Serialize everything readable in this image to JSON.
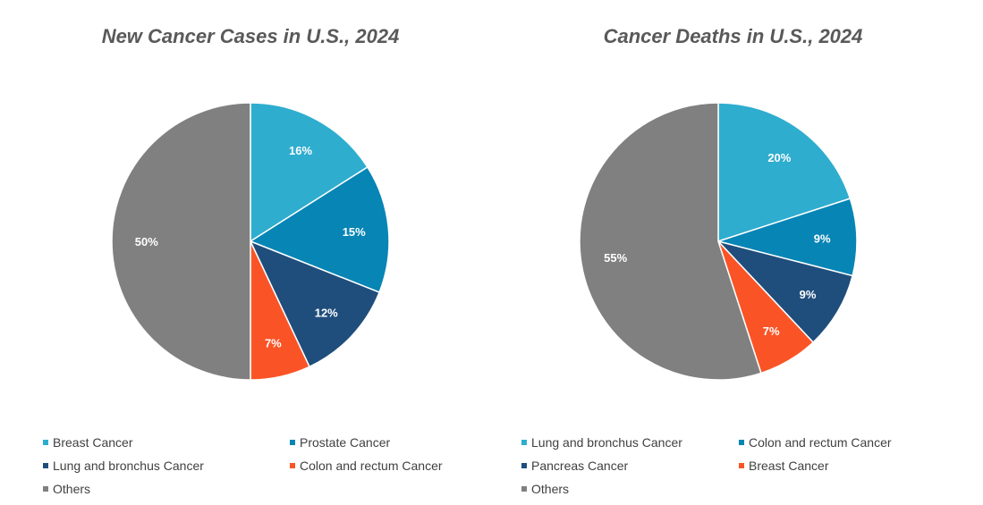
{
  "chart_data": [
    {
      "type": "pie",
      "title": "New Cancer Cases in U.S., 2024",
      "slices": [
        {
          "name": "Breast Cancer",
          "value": 16,
          "label": "16%",
          "color": "#2EADCF"
        },
        {
          "name": "Prostate Cancer",
          "value": 15,
          "label": "15%",
          "color": "#0785B5"
        },
        {
          "name": "Lung and bronchus Cancer",
          "value": 12,
          "label": "12%",
          "color": "#1F4E7C"
        },
        {
          "name": "Colon and rectum Cancer",
          "value": 7,
          "label": "7%",
          "color": "#FA5426"
        },
        {
          "name": "Others",
          "value": 50,
          "label": "50%",
          "color": "#808080"
        }
      ],
      "legend_position": "bottom"
    },
    {
      "type": "pie",
      "title": "Cancer Deaths in U.S., 2024",
      "slices": [
        {
          "name": "Lung and bronchus Cancer",
          "value": 20,
          "label": "20%",
          "color": "#2EADCF"
        },
        {
          "name": "Colon and rectum Cancer",
          "value": 9,
          "label": "9%",
          "color": "#0785B5"
        },
        {
          "name": "Pancreas Cancer",
          "value": 9,
          "label": "9%",
          "color": "#1F4E7C"
        },
        {
          "name": "Breast Cancer",
          "value": 7,
          "label": "7%",
          "color": "#FA5426"
        },
        {
          "name": "Others",
          "value": 55,
          "label": "55%",
          "color": "#808080"
        }
      ],
      "legend_position": "bottom"
    }
  ]
}
